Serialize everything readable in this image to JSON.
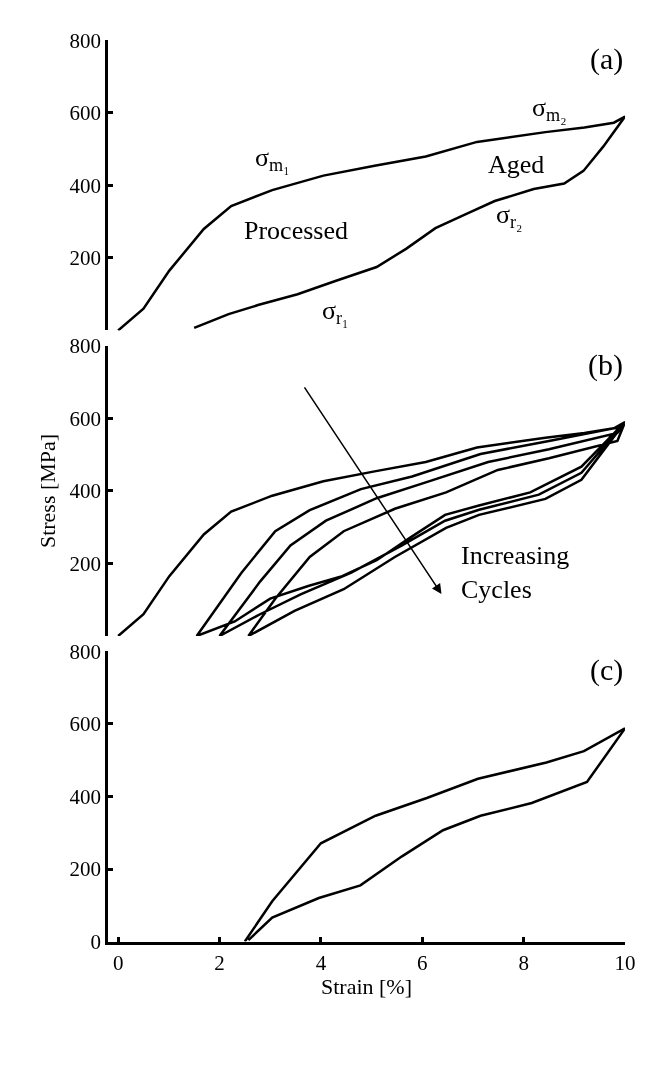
{
  "chart_data": [
    {
      "type": "line",
      "xlim": [
        -0.2,
        10
      ],
      "ylim": [
        0,
        800
      ],
      "yticks": [
        200,
        400,
        600,
        800
      ],
      "tick_labels": "y",
      "series": [
        {
          "color": "#000000",
          "x": [
            0,
            0.5,
            1.01,
            1.69,
            2.23,
            3.04,
            4.05,
            5.06,
            6.07,
            7.08,
            8.43,
            9.2,
            9.78,
            10,
            9.57,
            9.18,
            8.8,
            8.2,
            7.43,
            6.85,
            6.26,
            5.68,
            5.1,
            4.3,
            3.54,
            2.76,
            2.18,
            1.5
          ],
          "values": [
            0,
            60,
            165,
            280,
            343,
            387,
            427,
            454,
            480,
            520,
            547,
            560,
            573,
            590,
            507,
            440,
            405,
            390,
            357,
            320,
            282,
            225,
            175,
            137,
            100,
            70,
            45,
            7
          ]
        }
      ],
      "annotations": [
        "(a)",
        "σ$_{m₁}$",
        "σ$_{m₂}$",
        "Processed",
        "Aged",
        "σ$_{r₁}$",
        "σ$_{r₂}$"
      ]
    },
    {
      "type": "line",
      "xlim": [
        -0.2,
        10
      ],
      "ylim": [
        0,
        800
      ],
      "yticks": [
        200,
        400,
        600,
        800
      ],
      "tick_labels": "y",
      "ylabel": "Stress [MPa]",
      "series": [
        {
          "color": "#000000",
          "x": [
            0,
            0.5,
            1.01,
            1.69,
            2.23,
            3.04,
            4.05,
            5.06,
            6.07,
            7.08,
            8.43,
            9.2,
            9.78,
            10,
            9.14,
            8.13,
            7.12,
            6.45,
            5.77,
            5.1,
            4.42,
            3.75,
            3.0,
            2.3,
            1.55,
            2.43,
            3.1,
            3.78,
            4.79,
            5.8,
            7.15,
            8.5,
            9.85,
            10,
            9.14,
            8.3,
            7.12,
            6.45,
            5.6,
            4.6,
            3.6,
            2.8,
            2.0,
            2.8,
            3.4,
            4.1,
            5.1,
            6.1,
            7.3,
            8.5,
            9.85,
            10,
            9.14,
            8.43,
            7.12,
            6.47,
            5.46,
            4.45,
            3.48,
            2.57,
            3.1,
            3.78,
            4.45,
            5.46,
            6.47,
            7.49,
            8.5,
            9.85,
            10
          ],
          "values": [
            0,
            60,
            165,
            280,
            343,
            387,
            427,
            454,
            480,
            520,
            547,
            560,
            573,
            590,
            467,
            396,
            360,
            334,
            272,
            209,
            165,
            138,
            103,
            40,
            0,
            174,
            289,
            347,
            405,
            440,
            502,
            538,
            575,
            590,
            450,
            390,
            348,
            318,
            250,
            175,
            115,
            60,
            0,
            150,
            250,
            318,
            380,
            425,
            480,
            515,
            560,
            590,
            431,
            378,
            334,
            298,
            218,
            129,
            69,
            0,
            103,
            218,
            289,
            351,
            396,
            458,
            490,
            538,
            590
          ]
        }
      ],
      "annotations": [
        "(b)",
        "Increasing\nCycles"
      ]
    },
    {
      "type": "line",
      "xlim": [
        -0.2,
        10
      ],
      "xticks": [
        0,
        2,
        4,
        6,
        8,
        10
      ],
      "ylim": [
        0,
        800
      ],
      "yticks": [
        0,
        200,
        400,
        600,
        800
      ],
      "xlabel": "Strain [%]",
      "series": [
        {
          "color": "#000000",
          "x": [
            2.5,
            3.04,
            4.0,
            5.08,
            6.09,
            7.1,
            8.45,
            9.19,
            10,
            9.25,
            8.16,
            7.15,
            6.41,
            5.6,
            4.78,
            3.96,
            3.04,
            2.57
          ],
          "values": [
            0,
            111,
            271,
            347,
            396,
            449,
            494,
            525,
            588,
            440,
            382,
            347,
            307,
            235,
            155,
            120,
            66,
            4
          ]
        }
      ],
      "annotations": [
        "(c)"
      ]
    }
  ]
}
